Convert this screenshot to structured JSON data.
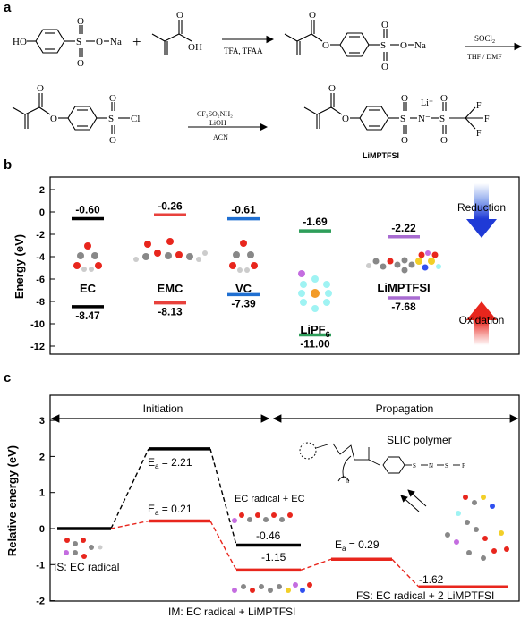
{
  "panel_a": {
    "letter": "a",
    "atoms": {
      "HO": "HO",
      "S": "S",
      "O": "O",
      "ONa": "O",
      "Na": "Na",
      "plus": "+",
      "OH": "OH",
      "Cl": "Cl",
      "N": "N",
      "F": "F"
    },
    "step1_top": "TFA, TFAA",
    "step2_top": "SOCl",
    "step2_sub": "2",
    "step2_bottom": "THF / DMF",
    "step3_top": "CF₃SO₂NH₂",
    "step3_mid": "LiOH",
    "step3_bottom": "ACN",
    "li_plus": "Li⁺",
    "n_minus": "N⁻",
    "product_label": "LiMPTFSI"
  },
  "panel_b": {
    "letter": "b",
    "ylabel": "Energy (eV)",
    "title_reduction": "Reduction",
    "title_oxidation": "Oxidation",
    "yticks": [
      "2",
      "0",
      "-2",
      "-4",
      "-6",
      "-8",
      "-10",
      "-12"
    ],
    "molecules": [
      {
        "name": "EC",
        "lumo": -0.6,
        "homo": -8.47,
        "lumo_label": "-0.60",
        "homo_label": "-8.47",
        "color": "#000000"
      },
      {
        "name": "EMC",
        "lumo": -0.26,
        "homo": -8.13,
        "lumo_label": "-0.26",
        "homo_label": "-8.13",
        "color": "#e8413c"
      },
      {
        "name": "VC",
        "lumo": -0.61,
        "homo": -7.39,
        "lumo_label": "-0.61",
        "homo_label": "-7.39",
        "color": "#1f6fd1"
      },
      {
        "name": "LiPF",
        "name_sub": "6",
        "lumo": -1.69,
        "homo": -11.0,
        "lumo_label": "-1.69",
        "homo_label": "-11.00",
        "color": "#2e9e5a"
      },
      {
        "name": "LiMPTFSI",
        "lumo": -2.22,
        "homo": -7.68,
        "lumo_label": "-2.22",
        "homo_label": "-7.68",
        "color": "#a86bd1"
      }
    ]
  },
  "panel_c": {
    "letter": "c",
    "ylabel": "Relative energy (eV)",
    "yticks": [
      "3",
      "2",
      "1",
      "0",
      "-1",
      "-2"
    ],
    "initiation": "Initiation",
    "propagation": "Propagation",
    "black_path": [
      {
        "label": "IS: EC radical",
        "value": 0
      },
      {
        "label": "E",
        "sub": "a",
        "suffix": " = 2.21",
        "value": 2.21
      },
      {
        "label": "EC radical + EC",
        "value": -0.46,
        "value_label": "-0.46"
      }
    ],
    "red_path": [
      {
        "label": "E",
        "sub": "a",
        "suffix": " = 0.21",
        "value": 0.21
      },
      {
        "label": "IM: EC radical + LiMPTFSI",
        "value": -1.15,
        "value_label": "-1.15"
      },
      {
        "label": "E",
        "sub": "a",
        "suffix": " = 0.29",
        "value": -0.85
      },
      {
        "label": "FS: EC radical + 2 LiMPTFSI",
        "value": -1.62,
        "value_label": "-1.62"
      }
    ],
    "is_label": "IS: EC radical",
    "black_ts_a": "E",
    "black_ts_sub": "a",
    "black_ts_val": " = 2.21",
    "red_ts1_a": "E",
    "red_ts1_sub": "a",
    "red_ts1_val": " = 0.21",
    "ec_ec_label": "EC radical + EC",
    "ec_ec_value": "-0.46",
    "im_label": "IM: EC radical + LiMPTFSI",
    "im_value": "-1.15",
    "red_ts2_a": "E",
    "red_ts2_sub": "a",
    "red_ts2_val": " = 0.29",
    "fs_label": "FS: EC radical + 2 LiMPTFSI",
    "fs_value": "-1.62",
    "polymer_label": "SLIC polymer",
    "polymer_n": "n"
  },
  "colors": {
    "black": "#000000",
    "red": "#e8261d",
    "blue": "#1f6fd1",
    "green": "#2e9e5a",
    "purple": "#a86bd1",
    "salmon": "#e8413c"
  }
}
